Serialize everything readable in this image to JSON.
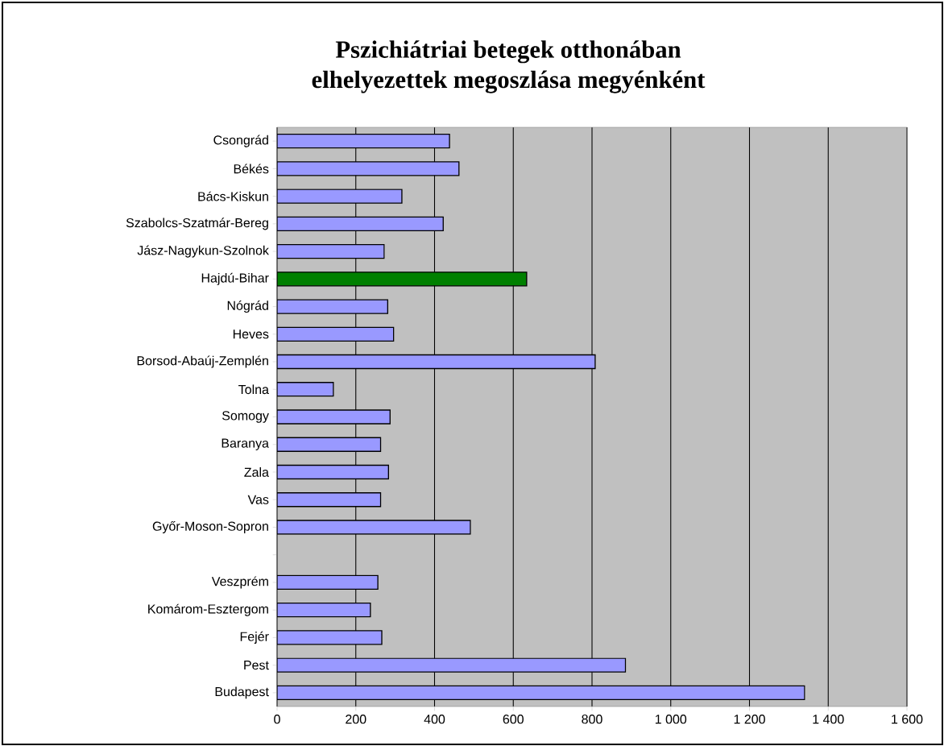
{
  "chart_data": {
    "type": "bar",
    "orientation": "horizontal",
    "title": "Pszichiátriai betegek otthonában\nelhelyezettek megoszlása megyénként",
    "categories": [
      "Csongrád",
      "Békés",
      "Bács-Kiskun",
      "Szabolcs-Szatmár-Bereg",
      "Jász-Nagykun-Szolnok",
      "Hajdú-Bihar",
      "Nógrád",
      "Heves",
      "Borsod-Abaúj-Zemplén",
      "Tolna",
      "Somogy",
      "Baranya",
      "Zala",
      "Vas",
      "Győr-Moson-Sopron",
      null,
      "Veszprém",
      "Komárom-Esztergom",
      "Fejér",
      "Pest",
      "Budapest"
    ],
    "values": [
      438,
      462,
      317,
      422,
      272,
      634,
      281,
      296,
      808,
      143,
      287,
      263,
      283,
      263,
      491,
      null,
      256,
      237,
      266,
      885,
      1340
    ],
    "colors": [
      "#9999ff",
      "#9999ff",
      "#9999ff",
      "#9999ff",
      "#9999ff",
      "#008000",
      "#9999ff",
      "#9999ff",
      "#9999ff",
      "#9999ff",
      "#9999ff",
      "#9999ff",
      "#9999ff",
      "#9999ff",
      "#9999ff",
      "#9999ff",
      "#9999ff",
      "#9999ff",
      "#9999ff",
      "#9999ff",
      "#9999ff"
    ],
    "xlim": [
      0,
      1600
    ],
    "xticks": [
      0,
      200,
      400,
      600,
      800,
      {
        "value": 1000,
        "label": "1 000"
      },
      {
        "value": 1200,
        "label": "1 200"
      },
      {
        "value": 1400,
        "label": "1 400"
      },
      {
        "value": 1600,
        "label": "1 600"
      }
    ],
    "grid": "x"
  }
}
